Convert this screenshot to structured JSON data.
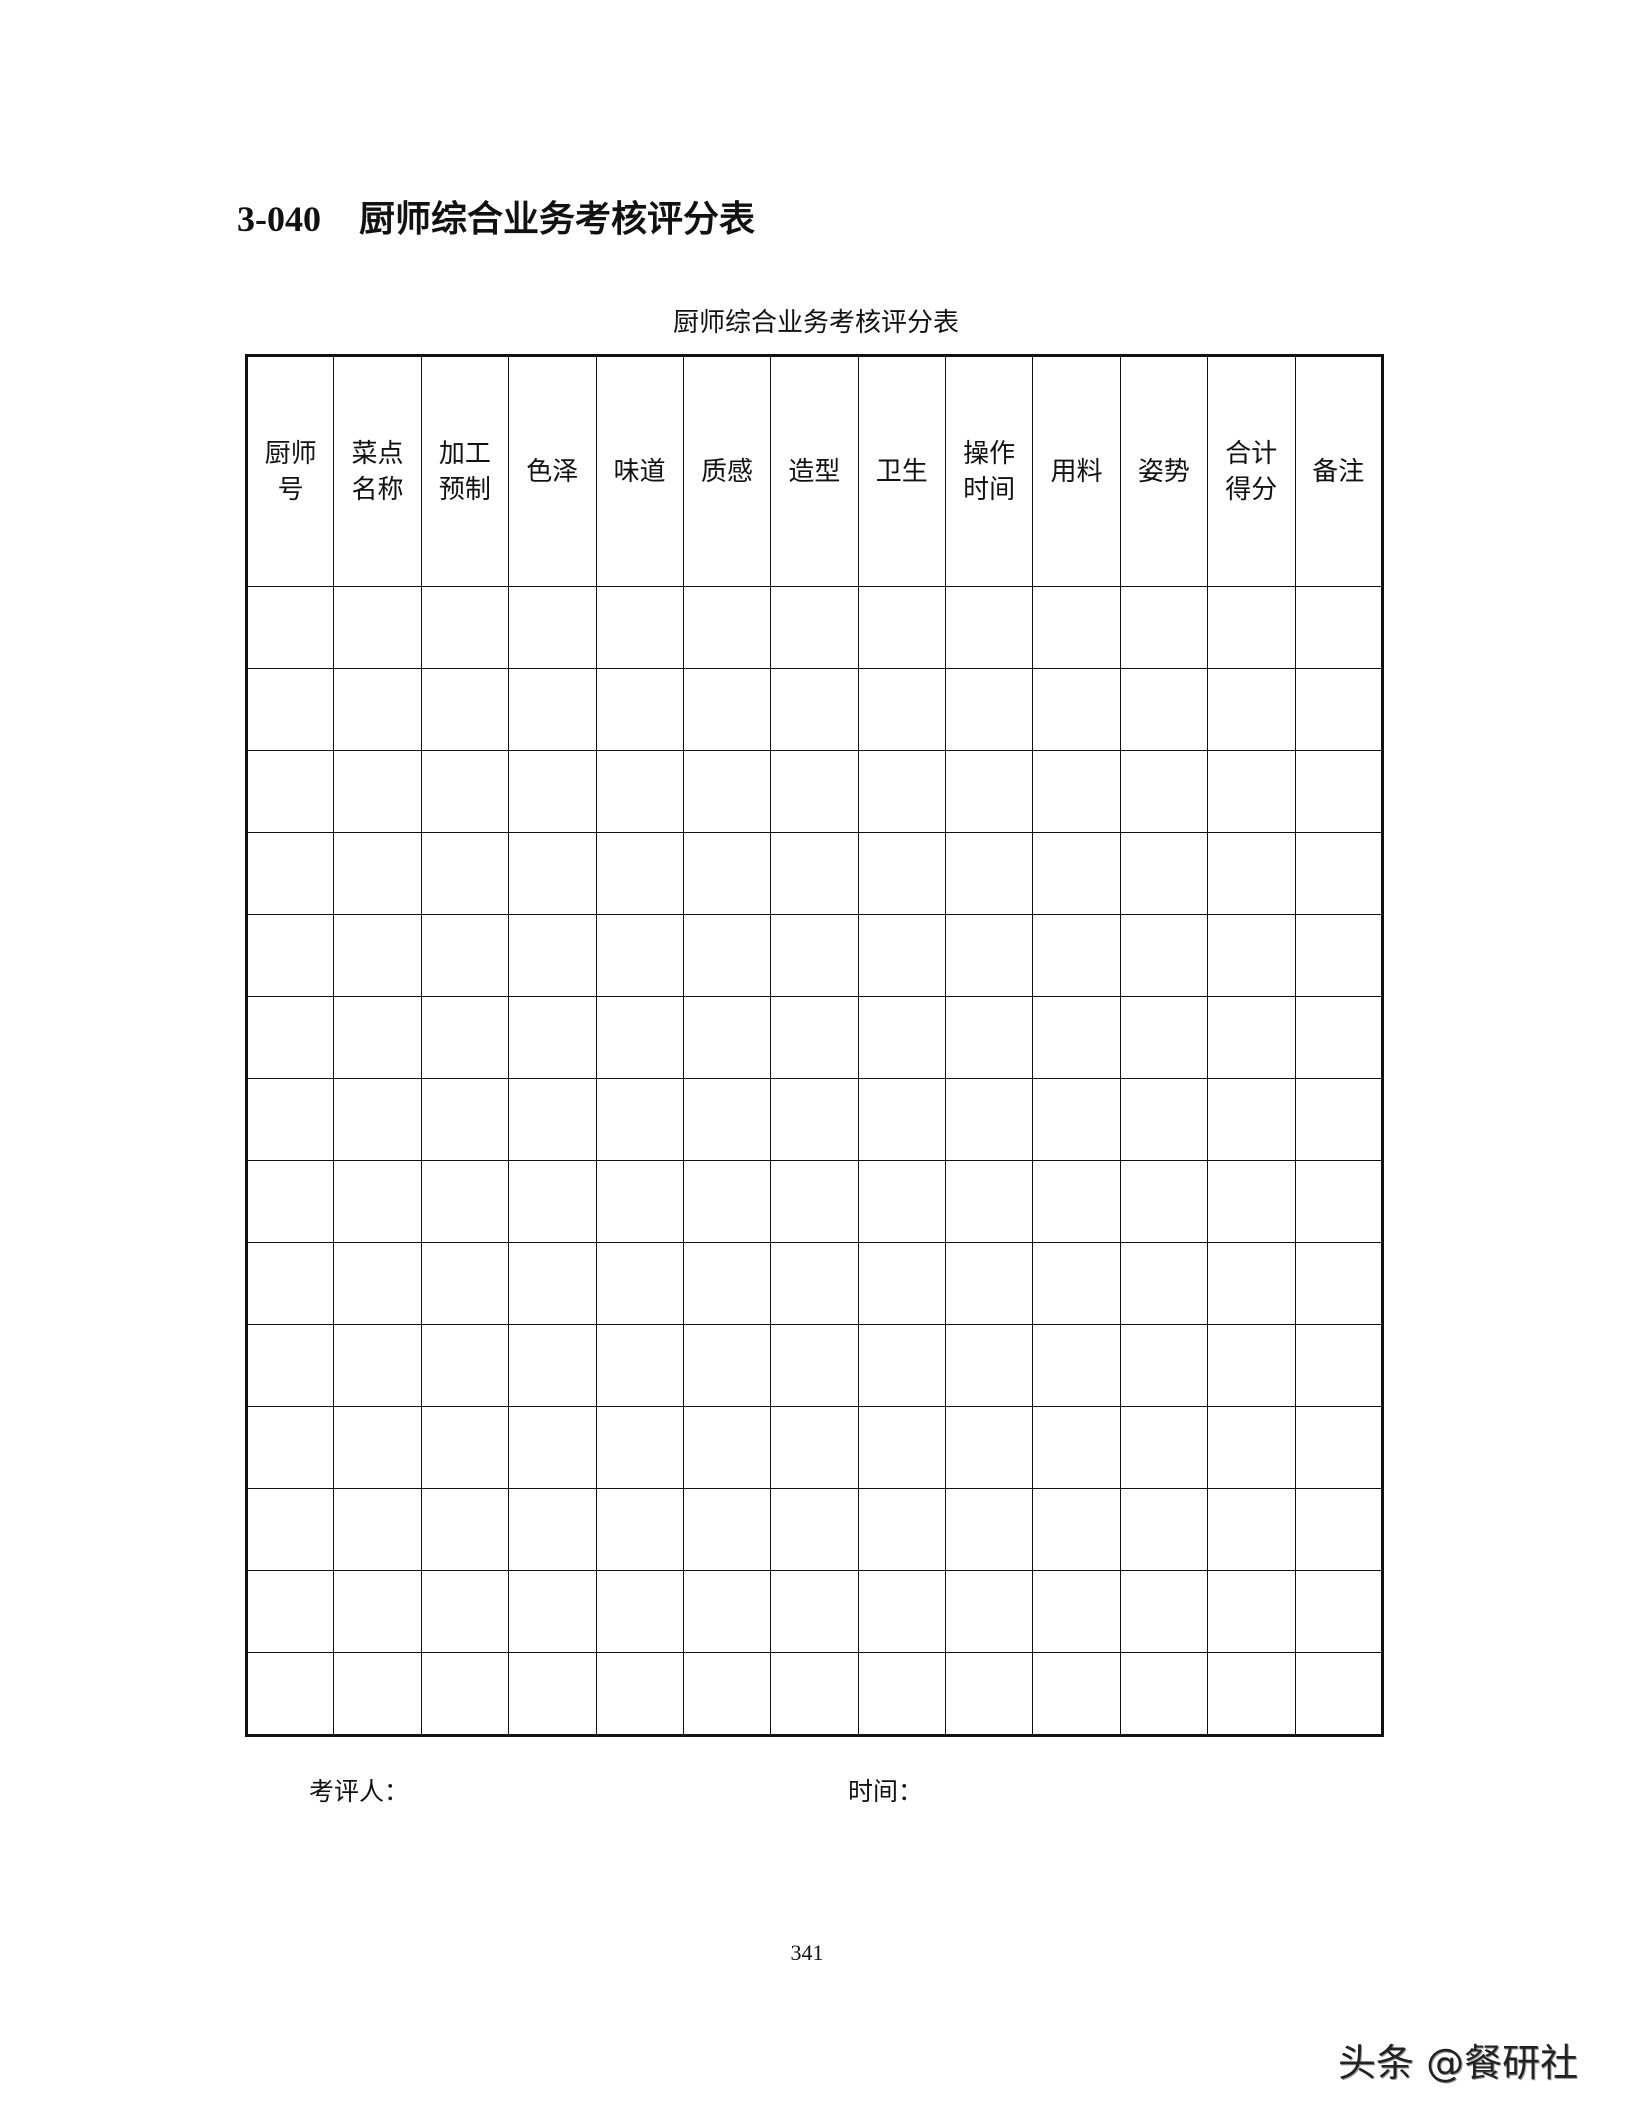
{
  "heading": {
    "number": "3-040",
    "text": "厨师综合业务考核评分表"
  },
  "table": {
    "caption": "厨师综合业务考核评分表",
    "columns": [
      [
        "厨师",
        "号"
      ],
      [
        "菜点",
        "名称"
      ],
      [
        "加工",
        "预制"
      ],
      [
        "色泽"
      ],
      [
        "味道"
      ],
      [
        "质感"
      ],
      [
        "造型"
      ],
      [
        "卫生"
      ],
      [
        "操作",
        "时间"
      ],
      [
        "用料"
      ],
      [
        "姿势"
      ],
      [
        "合计",
        "得分"
      ],
      [
        "备注"
      ]
    ],
    "empty_rows": 14
  },
  "footer": {
    "reviewer_label": "考评人：",
    "time_label": "时间："
  },
  "page_number": "341",
  "watermark": "头条 @餐研社"
}
